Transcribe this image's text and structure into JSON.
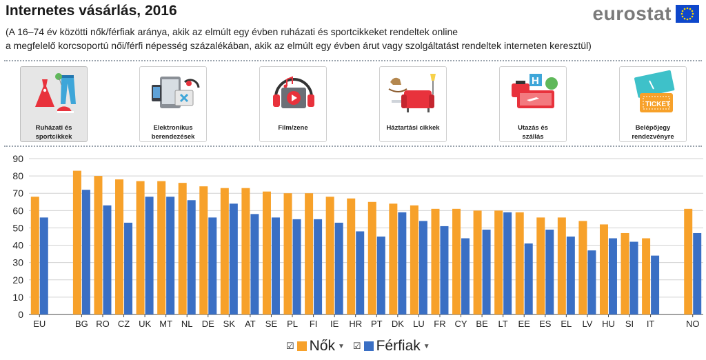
{
  "header": {
    "title": "Internetes vásárlás, 2016",
    "subtitle_line1": "(A 16–74 év közötti nők/férfiak aránya, akik az elmúlt egy évben ruházati és sportcikkeket rendeltek online",
    "subtitle_line2": "a megfelelő korcsoportú női/férfi népesség százalékában, akik az elmúlt egy évben árut vagy szolgáltatást rendeltek interneten keresztül)",
    "logo_text": "eurostat"
  },
  "categories": [
    {
      "label": "Ruházati és\nsportcikkek",
      "icon": "clothing-icon",
      "active": true
    },
    {
      "label": "Elektronikus\nberendezések",
      "icon": "electronics-icon",
      "active": false
    },
    {
      "label": "Film/zene",
      "icon": "film-music-icon",
      "active": false
    },
    {
      "label": "Háztartási cikkek",
      "icon": "household-icon",
      "active": false
    },
    {
      "label": "Utazás és\nszállás",
      "icon": "travel-icon",
      "active": false
    },
    {
      "label": "Belépőjegy\nrendezvényre",
      "icon": "ticket-icon",
      "active": false
    }
  ],
  "legend": {
    "women_label": "Nők",
    "men_label": "Férfiak"
  },
  "colors": {
    "women": "#F7A12A",
    "men": "#3A6FC4",
    "grid": "#d0d0d0",
    "eu_blue": "#0E47CB",
    "eu_star": "#FFDD00"
  },
  "chart_data": {
    "type": "bar",
    "title": "Internetes vásárlás, 2016",
    "xlabel": "",
    "ylabel": "",
    "ylim": [
      0,
      90
    ],
    "yticks": [
      0,
      10,
      20,
      30,
      40,
      50,
      60,
      70,
      80,
      90
    ],
    "grid": true,
    "legend_position": "bottom",
    "categories": [
      "EU",
      "",
      "BG",
      "RO",
      "CZ",
      "UK",
      "MT",
      "NL",
      "DE",
      "SK",
      "AT",
      "SE",
      "PL",
      "FI",
      "IE",
      "HR",
      "PT",
      "DK",
      "LU",
      "FR",
      "CY",
      "BE",
      "LT",
      "EE",
      "ES",
      "EL",
      "LV",
      "HU",
      "SI",
      "IT",
      "",
      "NO"
    ],
    "series": [
      {
        "name": "Nők",
        "values": [
          68,
          null,
          83,
          80,
          78,
          77,
          77,
          76,
          74,
          73,
          73,
          71,
          70,
          70,
          68,
          67,
          65,
          64,
          63,
          61,
          61,
          60,
          60,
          59,
          56,
          56,
          54,
          52,
          47,
          44,
          null,
          61
        ]
      },
      {
        "name": "Férfiak",
        "values": [
          56,
          null,
          72,
          63,
          53,
          68,
          68,
          66,
          56,
          64,
          58,
          56,
          55,
          55,
          53,
          48,
          45,
          59,
          54,
          51,
          44,
          49,
          59,
          41,
          49,
          45,
          37,
          44,
          42,
          34,
          null,
          47
        ]
      }
    ]
  }
}
